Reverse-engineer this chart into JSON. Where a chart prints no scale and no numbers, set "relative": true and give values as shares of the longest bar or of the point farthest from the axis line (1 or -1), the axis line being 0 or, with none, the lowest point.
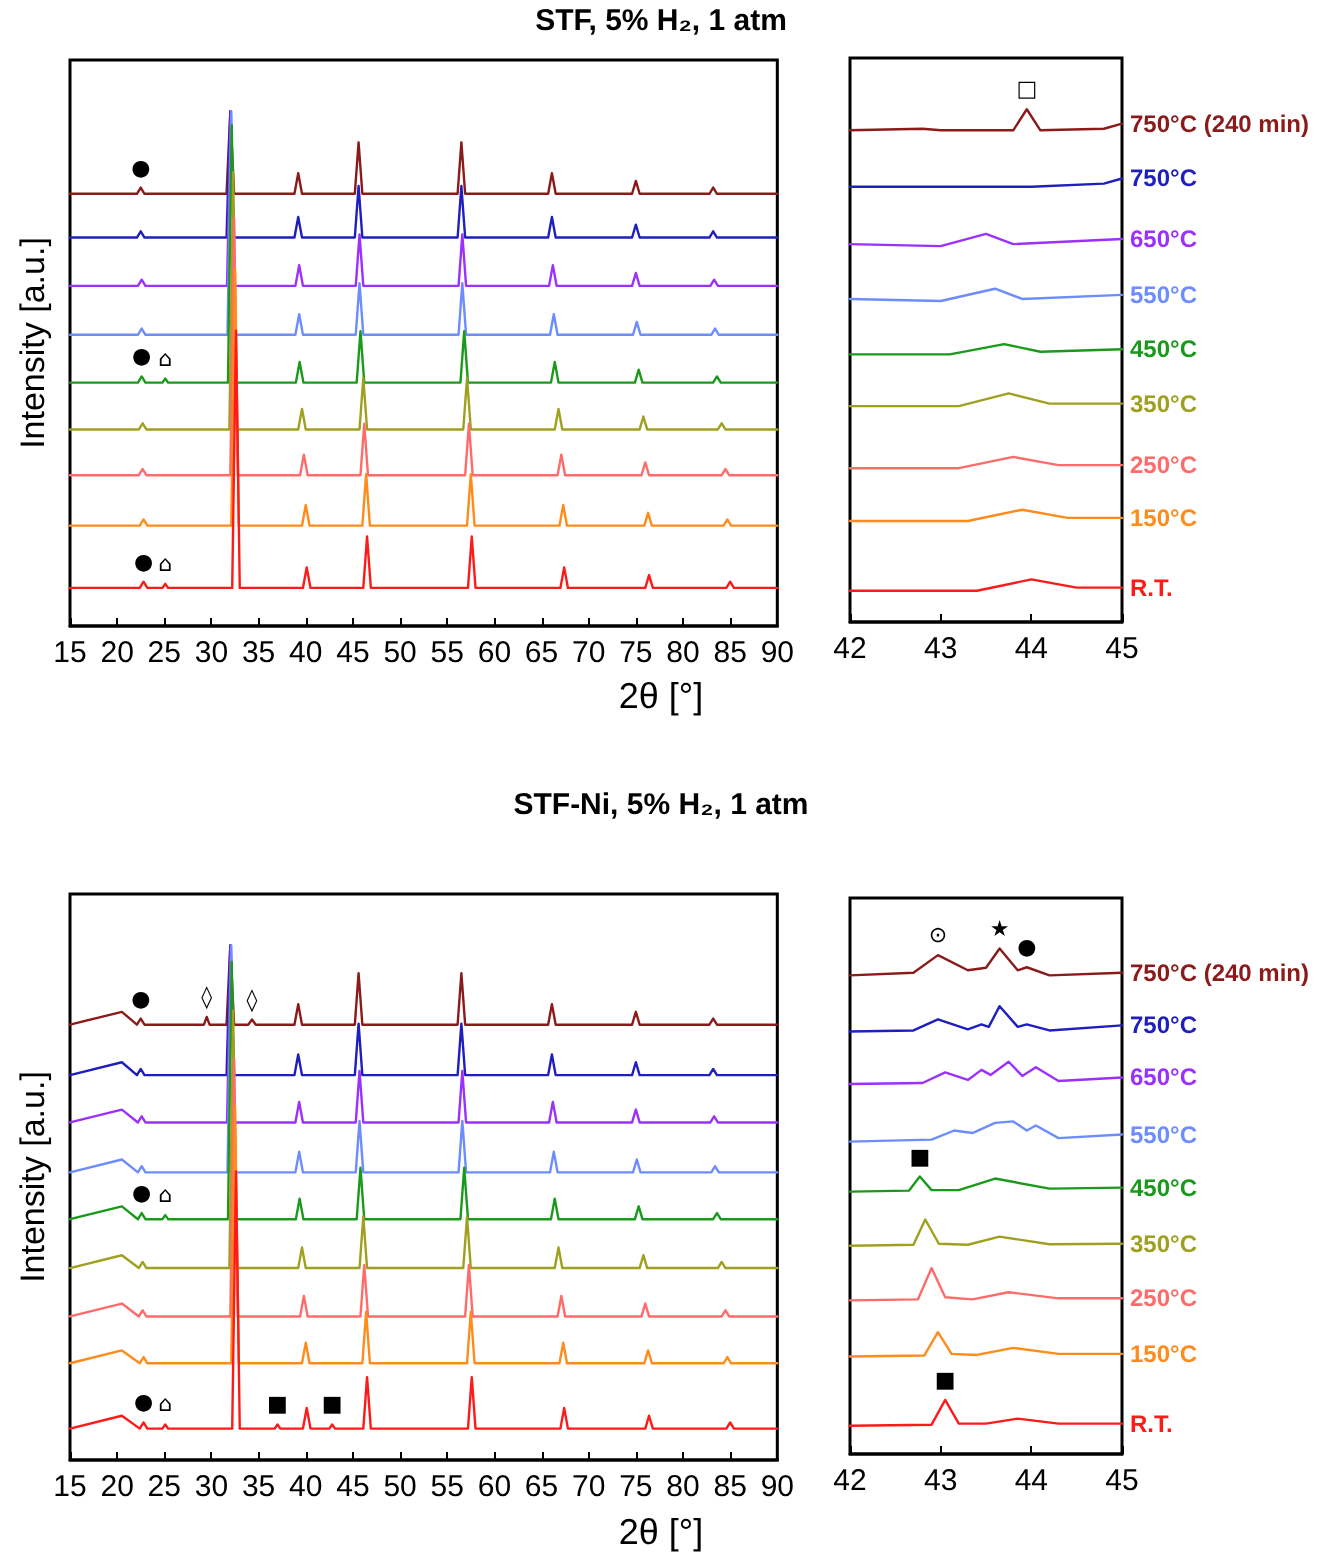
{
  "chart_data": [
    {
      "type": "line",
      "title": "STF, 5% H₂, 1 atm",
      "xlabel": "2θ [°]",
      "ylabel": "Intensity [a.u.]",
      "relative": true,
      "xlim": [
        15,
        90
      ],
      "xticks": [
        15,
        20,
        25,
        30,
        35,
        40,
        45,
        50,
        55,
        60,
        65,
        70,
        75,
        80,
        85,
        90
      ],
      "tick_labels": "x",
      "annotations": [
        {
          "text": "●",
          "x": 22.5,
          "y": 0.852
        },
        {
          "text": "●",
          "x": 22.6,
          "y": 0.485
        },
        {
          "text": "⌂",
          "x": 25.1,
          "y": 0.481
        },
        {
          "text": "●",
          "x": 22.8,
          "y": 0.086
        },
        {
          "text": "⌂",
          "x": 25.1,
          "y": 0.082
        }
      ],
      "series": [
        {
          "color": "#8b1a1a",
          "x": [
            15,
            22.1,
            22.5,
            22.9,
            31.6,
            32,
            32.4,
            38.8,
            39.2,
            39.6,
            45.2,
            45.6,
            46,
            56.1,
            56.5,
            56.9,
            65.7,
            66.1,
            66.5,
            74.6,
            75,
            75.4,
            82.8,
            83.2,
            83.6,
            90
          ],
          "values": [
            0.84,
            0.84,
            0.852,
            0.84,
            0.84,
            1,
            0.84,
            0.84,
            0.88,
            0.84,
            0.84,
            0.94,
            0.84,
            0.84,
            0.94,
            0.84,
            0.84,
            0.88,
            0.84,
            0.84,
            0.865,
            0.84,
            0.84,
            0.852,
            0.84,
            0.84
          ]
        },
        {
          "color": "#1f1fbf",
          "x": [
            15,
            22.1,
            22.5,
            22.9,
            31.6,
            32,
            32.4,
            38.8,
            39.2,
            39.6,
            45.2,
            45.6,
            46,
            56.1,
            56.5,
            56.9,
            65.7,
            66.1,
            66.5,
            74.6,
            75,
            75.4,
            82.8,
            83.2,
            83.6,
            90
          ],
          "values": [
            0.755,
            0.755,
            0.767,
            0.755,
            0.755,
            1,
            0.755,
            0.755,
            0.795,
            0.755,
            0.755,
            0.855,
            0.755,
            0.755,
            0.855,
            0.755,
            0.755,
            0.795,
            0.755,
            0.755,
            0.78,
            0.755,
            0.755,
            0.767,
            0.755,
            0.755
          ]
        },
        {
          "color": "#9b30ff",
          "x": [
            15,
            22.2,
            22.6,
            23,
            31.65,
            32.05,
            32.45,
            38.9,
            39.3,
            39.7,
            45.3,
            45.7,
            46.1,
            56.2,
            56.6,
            57,
            65.8,
            66.2,
            66.6,
            74.6,
            75,
            75.4,
            82.9,
            83.3,
            83.7,
            90
          ],
          "values": [
            0.661,
            0.661,
            0.673,
            0.661,
            0.661,
            1,
            0.661,
            0.661,
            0.701,
            0.661,
            0.661,
            0.761,
            0.661,
            0.661,
            0.761,
            0.661,
            0.661,
            0.701,
            0.661,
            0.661,
            0.686,
            0.661,
            0.661,
            0.673,
            0.661,
            0.661
          ]
        },
        {
          "color": "#6d8dff",
          "x": [
            15,
            22.2,
            22.6,
            23,
            31.7,
            32.1,
            32.5,
            38.9,
            39.3,
            39.7,
            45.3,
            45.7,
            46.1,
            56.2,
            56.6,
            57,
            65.9,
            66.3,
            66.7,
            74.7,
            75.1,
            75.5,
            83,
            83.4,
            83.8,
            90
          ],
          "values": [
            0.566,
            0.566,
            0.578,
            0.566,
            0.566,
            1,
            0.566,
            0.566,
            0.606,
            0.566,
            0.566,
            0.666,
            0.566,
            0.566,
            0.666,
            0.566,
            0.566,
            0.606,
            0.566,
            0.566,
            0.591,
            0.566,
            0.566,
            0.578,
            0.566,
            0.566
          ]
        },
        {
          "color": "#1a9a1a",
          "x": [
            15,
            22.2,
            22.6,
            23,
            24.8,
            25.1,
            25.4,
            31.75,
            32.15,
            32.55,
            38.95,
            39.35,
            39.75,
            45.4,
            45.8,
            46.2,
            56.4,
            56.8,
            57.2,
            66,
            66.4,
            66.8,
            74.9,
            75.3,
            75.7,
            83.2,
            83.6,
            84,
            90
          ],
          "values": [
            0.473,
            0.473,
            0.485,
            0.473,
            0.473,
            0.481,
            0.473,
            0.473,
            0.973,
            0.473,
            0.473,
            0.513,
            0.473,
            0.473,
            0.573,
            0.473,
            0.473,
            0.573,
            0.473,
            0.473,
            0.513,
            0.473,
            0.473,
            0.498,
            0.473,
            0.473,
            0.485,
            0.473,
            0.473
          ]
        },
        {
          "color": "#a0a020",
          "x": [
            15,
            22.3,
            22.7,
            23.1,
            31.9,
            32.3,
            32.7,
            39.2,
            39.6,
            40,
            45.7,
            46.1,
            46.5,
            56.7,
            57.1,
            57.5,
            66.4,
            66.8,
            67.2,
            75.4,
            75.8,
            76.2,
            83.7,
            84.1,
            84.5,
            90
          ],
          "values": [
            0.382,
            0.382,
            0.394,
            0.382,
            0.382,
            0.882,
            0.382,
            0.382,
            0.422,
            0.382,
            0.382,
            0.482,
            0.382,
            0.382,
            0.482,
            0.382,
            0.382,
            0.422,
            0.382,
            0.382,
            0.407,
            0.382,
            0.382,
            0.394,
            0.382,
            0.382
          ]
        },
        {
          "color": "#ff6b6b",
          "x": [
            15,
            22.3,
            22.7,
            23.1,
            32,
            32.4,
            32.8,
            39.4,
            39.8,
            40.2,
            45.8,
            46.2,
            46.6,
            56.9,
            57.3,
            57.7,
            66.7,
            67.1,
            67.5,
            75.6,
            76,
            76.4,
            84.1,
            84.5,
            84.9,
            90
          ],
          "values": [
            0.293,
            0.293,
            0.305,
            0.293,
            0.293,
            0.793,
            0.293,
            0.293,
            0.333,
            0.293,
            0.293,
            0.393,
            0.293,
            0.293,
            0.393,
            0.293,
            0.293,
            0.333,
            0.293,
            0.293,
            0.318,
            0.293,
            0.293,
            0.305,
            0.293,
            0.293
          ]
        },
        {
          "color": "#ff8c1a",
          "x": [
            15,
            22.4,
            22.8,
            23.2,
            32.1,
            32.5,
            32.9,
            39.6,
            40,
            40.4,
            46,
            46.4,
            46.8,
            57.1,
            57.5,
            57.9,
            66.9,
            67.3,
            67.7,
            75.9,
            76.3,
            76.7,
            84.3,
            84.7,
            85.1,
            90
          ],
          "values": [
            0.195,
            0.195,
            0.207,
            0.195,
            0.195,
            0.695,
            0.195,
            0.195,
            0.235,
            0.195,
            0.195,
            0.295,
            0.195,
            0.195,
            0.295,
            0.195,
            0.195,
            0.235,
            0.195,
            0.195,
            0.22,
            0.195,
            0.195,
            0.207,
            0.195,
            0.195
          ]
        },
        {
          "color": "#ff1a1a",
          "x": [
            15,
            22.4,
            22.8,
            23.2,
            24.8,
            25.1,
            25.4,
            32.2,
            32.6,
            33,
            39.7,
            40.1,
            40.5,
            46.1,
            46.5,
            46.9,
            57.2,
            57.6,
            58,
            67,
            67.4,
            67.8,
            76,
            76.4,
            76.8,
            84.6,
            85,
            85.4,
            90
          ],
          "values": [
            0.074,
            0.074,
            0.086,
            0.074,
            0.074,
            0.082,
            0.074,
            0.074,
            0.574,
            0.074,
            0.074,
            0.114,
            0.074,
            0.074,
            0.174,
            0.074,
            0.074,
            0.174,
            0.074,
            0.074,
            0.114,
            0.074,
            0.074,
            0.099,
            0.074,
            0.074,
            0.086,
            0.074,
            0.074
          ]
        }
      ]
    },
    {
      "type": "line",
      "relative": true,
      "xlim": [
        42,
        45
      ],
      "xticks": [
        42,
        43,
        44,
        45
      ],
      "tick_labels": "x",
      "annotations": [
        {
          "text": "□",
          "x": 43.95,
          "y": 1
        }
      ],
      "series": [
        {
          "name": "750°C (240 min)",
          "color": "#8b1a1a",
          "x": [
            42,
            42.8,
            43,
            43.8,
            43.95,
            44.1,
            44.8,
            45
          ],
          "values": [
            0.959,
            0.962,
            0.959,
            0.959,
            1,
            0.959,
            0.962,
            0.972
          ]
        },
        {
          "name": "750°C",
          "color": "#1f1fbf",
          "x": [
            42,
            43,
            44,
            44.8,
            45
          ],
          "values": [
            0.849,
            0.849,
            0.849,
            0.855,
            0.865
          ]
        },
        {
          "name": "650°C",
          "color": "#9b30ff",
          "x": [
            42,
            43,
            43.5,
            43.8,
            45
          ],
          "values": [
            0.737,
            0.733,
            0.757,
            0.737,
            0.747
          ]
        },
        {
          "name": "550°C",
          "color": "#6d8dff",
          "x": [
            42,
            43,
            43.6,
            43.9,
            45
          ],
          "values": [
            0.63,
            0.626,
            0.65,
            0.63,
            0.638
          ]
        },
        {
          "name": "450°C",
          "color": "#1a9a1a",
          "x": [
            42,
            43.1,
            43.7,
            44.1,
            45
          ],
          "values": [
            0.522,
            0.522,
            0.542,
            0.527,
            0.532
          ]
        },
        {
          "name": "350°C",
          "color": "#a0a020",
          "x": [
            42,
            43.2,
            43.75,
            44.2,
            45
          ],
          "values": [
            0.421,
            0.421,
            0.446,
            0.426,
            0.426
          ]
        },
        {
          "name": "250°C",
          "color": "#ff6b6b",
          "x": [
            42,
            43.2,
            43.8,
            44.3,
            45
          ],
          "values": [
            0.3,
            0.3,
            0.322,
            0.306,
            0.306
          ]
        },
        {
          "name": "150°C",
          "color": "#ff8c1a",
          "x": [
            42,
            43.3,
            43.9,
            44.4,
            45
          ],
          "values": [
            0.197,
            0.197,
            0.219,
            0.203,
            0.203
          ]
        },
        {
          "name": "R.T.",
          "color": "#ff1a1a",
          "x": [
            42,
            43.4,
            44,
            44.5,
            45
          ],
          "values": [
            0.061,
            0.061,
            0.083,
            0.067,
            0.067
          ]
        }
      ]
    },
    {
      "type": "line",
      "title": "STF-Ni, 5% H₂, 1 atm",
      "xlabel": "2θ [°]",
      "ylabel": "Intensity [a.u.]",
      "relative": true,
      "xlim": [
        15,
        90
      ],
      "xticks": [
        15,
        20,
        25,
        30,
        35,
        40,
        45,
        50,
        55,
        60,
        65,
        70,
        75,
        80,
        85,
        90
      ],
      "tick_labels": "x",
      "annotations": [
        {
          "text": "●",
          "x": 22.5,
          "y": 0.858
        },
        {
          "text": "◊",
          "x": 29.5,
          "y": 0.861
        },
        {
          "text": "◊",
          "x": 34.3,
          "y": 0.856
        },
        {
          "text": "●",
          "x": 22.6,
          "y": 0.48
        },
        {
          "text": "⌂",
          "x": 25.1,
          "y": 0.476
        },
        {
          "text": "●",
          "x": 22.8,
          "y": 0.073
        },
        {
          "text": "⌂",
          "x": 25.1,
          "y": 0.069
        },
        {
          "text": "■",
          "x": 37,
          "y": 0.069
        },
        {
          "text": "■",
          "x": 42.8,
          "y": 0.069
        }
      ],
      "series": [
        {
          "color": "#8b1a1a",
          "x": [
            15,
            20.5,
            22.1,
            22.5,
            22.9,
            29.2,
            29.5,
            29.8,
            31.6,
            32,
            32.4,
            33.9,
            34.3,
            34.7,
            38.8,
            39.2,
            39.6,
            45.2,
            45.6,
            46,
            56.1,
            56.5,
            56.9,
            65.7,
            66.1,
            66.5,
            74.6,
            75,
            75.4,
            82.8,
            83.2,
            83.6,
            90
          ],
          "values": [
            0.846,
            0.871,
            0.846,
            0.858,
            0.846,
            0.846,
            0.861,
            0.846,
            0.846,
            1,
            0.846,
            0.846,
            0.856,
            0.846,
            0.846,
            0.886,
            0.846,
            0.846,
            0.946,
            0.846,
            0.846,
            0.946,
            0.846,
            0.846,
            0.886,
            0.846,
            0.846,
            0.871,
            0.846,
            0.846,
            0.858,
            0.846,
            0.846
          ]
        },
        {
          "color": "#1f1fbf",
          "x": [
            15,
            20.5,
            22.1,
            22.5,
            22.9,
            31.6,
            32,
            32.4,
            38.8,
            39.2,
            39.6,
            45.2,
            45.6,
            46,
            56.1,
            56.5,
            56.9,
            65.7,
            66.1,
            66.5,
            74.6,
            75,
            75.4,
            82.8,
            83.2,
            83.6,
            90
          ],
          "values": [
            0.748,
            0.773,
            0.748,
            0.76,
            0.748,
            0.748,
            1,
            0.748,
            0.748,
            0.788,
            0.748,
            0.748,
            0.848,
            0.748,
            0.748,
            0.848,
            0.748,
            0.748,
            0.788,
            0.748,
            0.748,
            0.773,
            0.748,
            0.748,
            0.76,
            0.748,
            0.748
          ]
        },
        {
          "color": "#9b30ff",
          "x": [
            15,
            20.5,
            22.2,
            22.6,
            23,
            31.65,
            32.05,
            32.45,
            38.9,
            39.3,
            39.7,
            45.3,
            45.7,
            46.1,
            56.2,
            56.6,
            57,
            65.8,
            66.2,
            66.6,
            74.6,
            75,
            75.4,
            82.9,
            83.3,
            83.7,
            90
          ],
          "values": [
            0.656,
            0.681,
            0.656,
            0.668,
            0.656,
            0.656,
            1,
            0.656,
            0.656,
            0.696,
            0.656,
            0.656,
            0.756,
            0.656,
            0.656,
            0.756,
            0.656,
            0.656,
            0.696,
            0.656,
            0.656,
            0.681,
            0.656,
            0.656,
            0.668,
            0.656,
            0.656
          ]
        },
        {
          "color": "#6d8dff",
          "x": [
            15,
            20.5,
            22.2,
            22.6,
            23,
            31.7,
            32.1,
            32.5,
            38.9,
            39.3,
            39.7,
            45.3,
            45.7,
            46.1,
            56.2,
            56.6,
            57,
            65.9,
            66.3,
            66.7,
            74.7,
            75.1,
            75.5,
            83,
            83.4,
            83.8,
            90
          ],
          "values": [
            0.559,
            0.584,
            0.559,
            0.571,
            0.559,
            0.559,
            1,
            0.559,
            0.559,
            0.599,
            0.559,
            0.559,
            0.659,
            0.559,
            0.559,
            0.659,
            0.559,
            0.559,
            0.599,
            0.559,
            0.559,
            0.584,
            0.559,
            0.559,
            0.571,
            0.559,
            0.559
          ]
        },
        {
          "color": "#1a9a1a",
          "x": [
            15,
            20.5,
            22.2,
            22.6,
            23,
            24.8,
            25.1,
            25.4,
            31.75,
            32.15,
            32.55,
            38.95,
            39.35,
            39.75,
            45.4,
            45.8,
            46.2,
            56.4,
            56.8,
            57.2,
            66,
            66.4,
            66.8,
            74.9,
            75.3,
            75.7,
            83.2,
            83.6,
            84,
            90
          ],
          "values": [
            0.468,
            0.493,
            0.468,
            0.48,
            0.468,
            0.468,
            0.476,
            0.468,
            0.468,
            0.968,
            0.468,
            0.468,
            0.508,
            0.468,
            0.468,
            0.568,
            0.468,
            0.468,
            0.568,
            0.468,
            0.468,
            0.508,
            0.468,
            0.468,
            0.493,
            0.468,
            0.468,
            0.48,
            0.468,
            0.468
          ]
        },
        {
          "color": "#a0a020",
          "x": [
            15,
            20.5,
            22.3,
            22.7,
            23.1,
            31.9,
            32.3,
            32.7,
            39.2,
            39.6,
            40,
            45.7,
            46.1,
            46.5,
            56.7,
            57.1,
            57.5,
            66.4,
            66.8,
            67.2,
            75.4,
            75.8,
            76.2,
            83.7,
            84.1,
            84.5,
            90
          ],
          "values": [
            0.373,
            0.398,
            0.373,
            0.385,
            0.373,
            0.373,
            0.873,
            0.373,
            0.373,
            0.413,
            0.373,
            0.373,
            0.473,
            0.373,
            0.373,
            0.473,
            0.373,
            0.373,
            0.413,
            0.373,
            0.373,
            0.398,
            0.373,
            0.373,
            0.385,
            0.373,
            0.373
          ]
        },
        {
          "color": "#ff6b6b",
          "x": [
            15,
            20.5,
            22.3,
            22.7,
            23.1,
            32,
            32.4,
            32.8,
            39.4,
            39.8,
            40.2,
            45.8,
            46.2,
            46.6,
            56.9,
            57.3,
            57.7,
            66.7,
            67.1,
            67.5,
            75.6,
            76,
            76.4,
            84.1,
            84.5,
            84.9,
            90
          ],
          "values": [
            0.279,
            0.304,
            0.279,
            0.291,
            0.279,
            0.279,
            0.779,
            0.279,
            0.279,
            0.319,
            0.279,
            0.279,
            0.379,
            0.279,
            0.279,
            0.379,
            0.279,
            0.279,
            0.319,
            0.279,
            0.279,
            0.304,
            0.279,
            0.279,
            0.291,
            0.279,
            0.279
          ]
        },
        {
          "color": "#ff8c1a",
          "x": [
            15,
            20.5,
            22.4,
            22.8,
            23.2,
            32.1,
            32.5,
            32.9,
            39.6,
            40,
            40.4,
            46,
            46.4,
            46.8,
            57.1,
            57.5,
            57.9,
            66.9,
            67.3,
            67.7,
            75.9,
            76.3,
            76.7,
            84.3,
            84.7,
            85.1,
            90
          ],
          "values": [
            0.188,
            0.213,
            0.188,
            0.2,
            0.188,
            0.188,
            0.688,
            0.188,
            0.188,
            0.228,
            0.188,
            0.188,
            0.288,
            0.188,
            0.188,
            0.288,
            0.188,
            0.188,
            0.228,
            0.188,
            0.188,
            0.213,
            0.188,
            0.188,
            0.2,
            0.188,
            0.188
          ]
        },
        {
          "color": "#ff1a1a",
          "x": [
            15,
            20.5,
            22.4,
            22.8,
            23.2,
            24.8,
            25.1,
            25.4,
            32.2,
            32.6,
            33,
            36.7,
            37,
            37.3,
            39.7,
            40.1,
            40.5,
            42.5,
            42.8,
            43.1,
            46.1,
            46.5,
            46.9,
            57.2,
            57.6,
            58,
            67,
            67.4,
            67.8,
            76,
            76.4,
            76.8,
            84.6,
            85,
            85.4,
            90
          ],
          "values": [
            0.061,
            0.086,
            0.061,
            0.073,
            0.061,
            0.061,
            0.069,
            0.061,
            0.061,
            0.561,
            0.061,
            0.061,
            0.069,
            0.061,
            0.061,
            0.101,
            0.061,
            0.061,
            0.069,
            0.061,
            0.061,
            0.161,
            0.061,
            0.061,
            0.161,
            0.061,
            0.061,
            0.101,
            0.061,
            0.061,
            0.086,
            0.061,
            0.061,
            0.073,
            0.061,
            0.061
          ]
        }
      ]
    },
    {
      "type": "line",
      "relative": true,
      "xlim": [
        42,
        45
      ],
      "xticks": [
        42,
        43,
        44,
        45
      ],
      "tick_labels": "x",
      "annotations": [
        {
          "text": "⊙",
          "x": 42.97,
          "y": 0.987
        },
        {
          "text": "★",
          "x": 43.65,
          "y": 1
        },
        {
          "text": "●",
          "x": 43.95,
          "y": 0.963
        },
        {
          "text": "■",
          "x": 42.77,
          "y": 0.549
        },
        {
          "text": "■",
          "x": 43.05,
          "y": 0.107
        }
      ],
      "series": [
        {
          "name": "750°C (240 min)",
          "color": "#8b1a1a",
          "x": [
            42,
            42.7,
            42.97,
            43.3,
            43.5,
            43.65,
            43.85,
            43.95,
            44.2,
            45
          ],
          "values": [
            0.947,
            0.952,
            0.987,
            0.957,
            0.962,
            1,
            0.957,
            0.963,
            0.947,
            0.952
          ]
        },
        {
          "name": "750°C",
          "color": "#1f1fbf",
          "x": [
            42,
            42.7,
            42.97,
            43.3,
            43.45,
            43.53,
            43.65,
            43.85,
            43.95,
            44.2,
            45
          ],
          "values": [
            0.836,
            0.838,
            0.86,
            0.84,
            0.85,
            0.845,
            0.886,
            0.845,
            0.85,
            0.838,
            0.848
          ]
        },
        {
          "name": "650°C",
          "color": "#9b30ff",
          "x": [
            42,
            42.8,
            43.05,
            43.3,
            43.45,
            43.55,
            43.75,
            43.9,
            44.05,
            44.3,
            45
          ],
          "values": [
            0.732,
            0.734,
            0.755,
            0.74,
            0.76,
            0.75,
            0.776,
            0.748,
            0.765,
            0.738,
            0.745
          ]
        },
        {
          "name": "550°C",
          "color": "#6d8dff",
          "x": [
            42,
            42.9,
            43.15,
            43.35,
            43.6,
            43.8,
            43.95,
            44.05,
            44.3,
            45
          ],
          "values": [
            0.618,
            0.622,
            0.64,
            0.635,
            0.655,
            0.658,
            0.64,
            0.65,
            0.625,
            0.632
          ]
        },
        {
          "name": "450°C",
          "color": "#1a9a1a",
          "x": [
            42,
            42.65,
            42.77,
            42.9,
            43.2,
            43.6,
            44.2,
            45
          ],
          "values": [
            0.519,
            0.521,
            0.549,
            0.522,
            0.522,
            0.545,
            0.525,
            0.527
          ]
        },
        {
          "name": "350°C",
          "color": "#a0a020",
          "x": [
            42,
            42.7,
            42.83,
            42.98,
            43.3,
            43.65,
            44.2,
            45
          ],
          "values": [
            0.412,
            0.414,
            0.464,
            0.416,
            0.414,
            0.43,
            0.415,
            0.416
          ]
        },
        {
          "name": "250°C",
          "color": "#ff6b6b",
          "x": [
            42,
            42.75,
            42.9,
            43.05,
            43.35,
            43.75,
            44.3,
            45
          ],
          "values": [
            0.304,
            0.306,
            0.368,
            0.31,
            0.306,
            0.32,
            0.308,
            0.308
          ]
        },
        {
          "name": "150°C",
          "color": "#ff8c1a",
          "x": [
            42,
            42.82,
            42.97,
            43.12,
            43.4,
            43.8,
            44.3,
            45
          ],
          "values": [
            0.193,
            0.195,
            0.241,
            0.198,
            0.196,
            0.21,
            0.198,
            0.198
          ]
        },
        {
          "name": "R.T.",
          "color": "#ff1a1a",
          "x": [
            42,
            42.9,
            43.05,
            43.2,
            43.5,
            43.85,
            44.3,
            45
          ],
          "values": [
            0.056,
            0.058,
            0.107,
            0.06,
            0.06,
            0.07,
            0.06,
            0.06
          ]
        }
      ]
    }
  ]
}
